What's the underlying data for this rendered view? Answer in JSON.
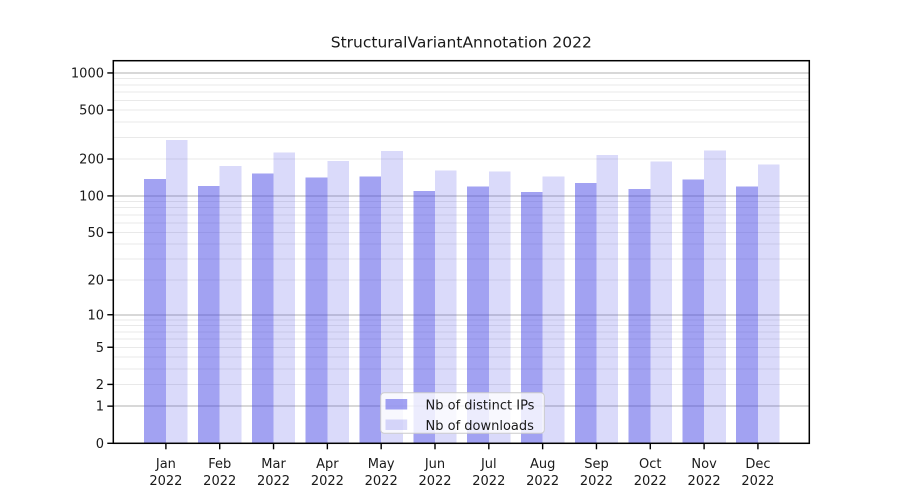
{
  "chart_data": {
    "type": "bar",
    "title": "StructuralVariantAnnotation 2022",
    "year": "2022",
    "categories": [
      "Jan",
      "Feb",
      "Mar",
      "Apr",
      "May",
      "Jun",
      "Jul",
      "Aug",
      "Sep",
      "Oct",
      "Nov",
      "Dec"
    ],
    "series": [
      {
        "name": "Nb of distinct IPs",
        "color": "#4646e6",
        "opacity": 0.5,
        "values": [
          138,
          120,
          153,
          141,
          144,
          110,
          119,
          108,
          127,
          114,
          136,
          119
        ]
      },
      {
        "name": "Nb of downloads",
        "color": "#4646e6",
        "opacity": 0.2,
        "values": [
          286,
          176,
          225,
          192,
          233,
          161,
          158,
          144,
          216,
          191,
          234,
          180
        ]
      }
    ],
    "y_ticks": [
      0,
      1,
      2,
      5,
      10,
      20,
      50,
      100,
      200,
      500,
      1000
    ],
    "scale": "log1p",
    "ylim": [
      0,
      1257
    ],
    "xlabel": "",
    "ylabel": "",
    "grid": "major-and-minor",
    "legend_position": "lower center"
  },
  "colors": {
    "axis": "#000000",
    "text": "#1a1a1a",
    "grid_major": "#b0b0b0",
    "grid_minor": "#e9e9e9",
    "legend_bg": "rgba(255,255,255,0.8)",
    "legend_border": "#cccccc",
    "background": "#ffffff"
  }
}
